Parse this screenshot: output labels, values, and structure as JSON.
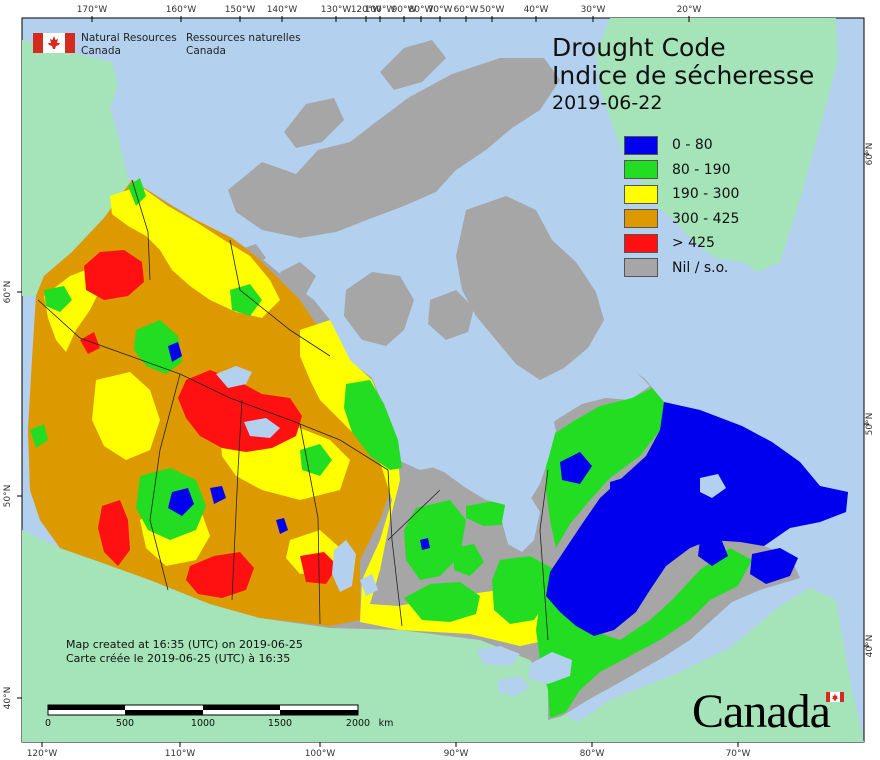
{
  "org": {
    "name_en_line1": "Natural Resources",
    "name_en_line2": "Canada",
    "name_fr_line1": "Ressources naturelles",
    "name_fr_line2": "Canada"
  },
  "title": {
    "en": "Drought Code",
    "fr": "Indice de sécheresse",
    "date": "2019-06-22"
  },
  "legend": [
    {
      "label": "0 - 80",
      "color": "#0000ee"
    },
    {
      "label": "80 - 190",
      "color": "#22dd22"
    },
    {
      "label": "190 - 300",
      "color": "#ffff00"
    },
    {
      "label": "300 - 425",
      "color": "#dd9900"
    },
    {
      "label": "> 425",
      "color": "#ff1111"
    },
    {
      "label": "Nil / s.o.",
      "color": "#a6a6a6"
    }
  ],
  "top_ticks": [
    "170°W",
    "160°W",
    "150°W",
    "140°W",
    "130°W",
    "120°W",
    "100°W",
    "90°W",
    "80°W",
    "70°W",
    "60°W",
    "50°W",
    "40°W",
    "30°W",
    "20°W"
  ],
  "bottom_ticks": [
    "120°W",
    "110°W",
    "100°W",
    "90°W",
    "80°W",
    "70°W"
  ],
  "left_ticks": [
    "60°N",
    "50°N",
    "40°N"
  ],
  "right_ticks": [
    "60°N",
    "50°N",
    "40°N"
  ],
  "credit": {
    "en": "Map created at 16:35 (UTC) on 2019-06-25",
    "fr": "Carte créée le 2019-06-25 (UTC) à 16:35"
  },
  "scale": {
    "labels": [
      "0",
      "500",
      "1000",
      "1500",
      "2000"
    ],
    "unit": "km"
  },
  "wordmark": "Canada",
  "colors": {
    "ocean": "#b3d1ef",
    "foreign_land": "#a5e3b8",
    "nil": "#a6a6a6"
  }
}
